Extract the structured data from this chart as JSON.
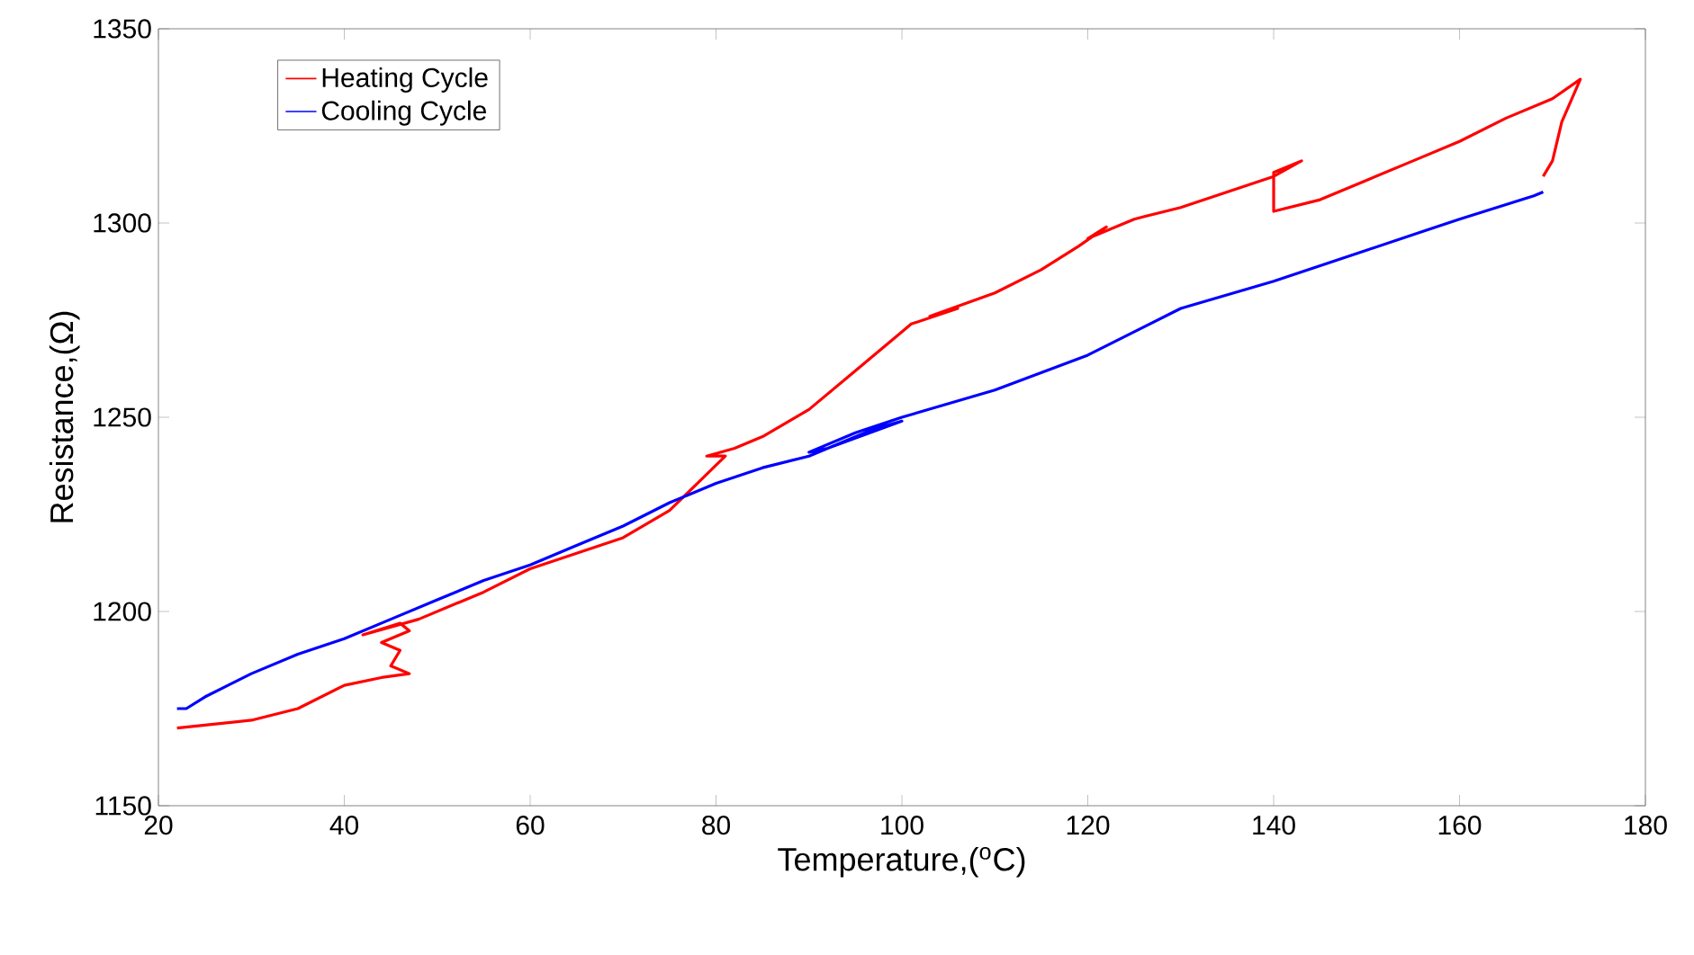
{
  "chart_data": {
    "type": "line",
    "xlabel": "Temperature,($^{o}$C)",
    "ylabel": "Resistance,(Ω)",
    "xlim": [
      20,
      180
    ],
    "ylim": [
      1150,
      1350
    ],
    "xticks": [
      20,
      40,
      60,
      80,
      100,
      120,
      140,
      160,
      180
    ],
    "yticks": [
      1150,
      1200,
      1250,
      1300,
      1350
    ],
    "grid": false,
    "legend": "top left",
    "marker": "none",
    "line_style": "solid",
    "series": [
      {
        "name": "Heating Cycle",
        "color": "#ff0000",
        "x": [
          22,
          30,
          35,
          40,
          44,
          47,
          45,
          46,
          44,
          47,
          46,
          42,
          48,
          55,
          60,
          65,
          70,
          75,
          78,
          81,
          79,
          82,
          85,
          90,
          95,
          100,
          101,
          106,
          103,
          110,
          115,
          119,
          122,
          120,
          125,
          130,
          135,
          140,
          143,
          140,
          140,
          145,
          150,
          155,
          160,
          165,
          170,
          173,
          171,
          170,
          169
        ],
        "values": [
          1170,
          1172,
          1175,
          1181,
          1183,
          1184,
          1186,
          1190,
          1192,
          1195,
          1197,
          1194,
          1198,
          1205,
          1211,
          1215,
          1219,
          1226,
          1233,
          1240,
          1240,
          1242,
          1245,
          1252,
          1262,
          1272,
          1274,
          1278,
          1276,
          1282,
          1288,
          1294,
          1299,
          1296,
          1301,
          1304,
          1308,
          1312,
          1316,
          1313,
          1303,
          1306,
          1311,
          1316,
          1321,
          1327,
          1332,
          1337,
          1326,
          1316,
          1312
        ]
      },
      {
        "name": "Cooling Cycle",
        "color": "#0000ff",
        "x": [
          169,
          168,
          160,
          150,
          140,
          130,
          120,
          110,
          100,
          95,
          90,
          92,
          100,
          97,
          90,
          85,
          80,
          75,
          70,
          65,
          60,
          55,
          50,
          45,
          40,
          35,
          30,
          25,
          23,
          22
        ],
        "values": [
          1308,
          1307,
          1301,
          1293,
          1285,
          1278,
          1266,
          1257,
          1250,
          1246,
          1241,
          1242,
          1249,
          1247,
          1240,
          1237,
          1233,
          1228,
          1222,
          1217,
          1212,
          1208,
          1203,
          1198,
          1193,
          1189,
          1184,
          1178,
          1175,
          1175
        ]
      }
    ]
  }
}
